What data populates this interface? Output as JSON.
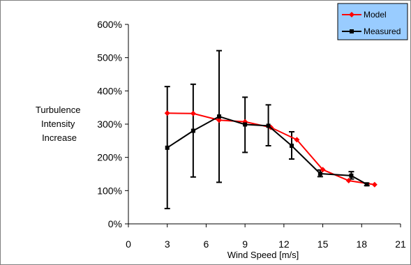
{
  "chart_data": {
    "type": "line",
    "xlabel": "Wind Speed [m/s]",
    "ylabel_lines": [
      "Turbulence",
      "Intensity",
      "Increase"
    ],
    "xlim": [
      0,
      21
    ],
    "ylim": [
      0,
      600
    ],
    "x_ticks": [
      0,
      3,
      6,
      9,
      12,
      15,
      18,
      21
    ],
    "y_ticks": [
      0,
      100,
      200,
      300,
      400,
      500,
      600
    ],
    "x_tick_labels": [
      "0",
      "3",
      "6",
      "9",
      "12",
      "15",
      "18",
      "21"
    ],
    "y_tick_labels": [
      "0%",
      "100%",
      "200%",
      "300%",
      "400%",
      "500%",
      "600%"
    ],
    "grid": false,
    "legend_position": "top-right",
    "legend_background": "#99ccff",
    "series": [
      {
        "name": "Model",
        "color": "#ff0000",
        "marker": "diamond",
        "x": [
          3,
          5,
          7,
          9,
          11,
          13,
          15,
          17,
          19
        ],
        "y": [
          333,
          332,
          312,
          307,
          290,
          253,
          163,
          130,
          118
        ]
      },
      {
        "name": "Measured",
        "color": "#000000",
        "marker": "square",
        "x": [
          3,
          5,
          7,
          9,
          10.8,
          12.6,
          14.8,
          17.2,
          18.4
        ],
        "y": [
          229,
          280,
          323,
          299,
          295,
          235,
          151,
          145,
          119
        ],
        "error_low": [
          46,
          141,
          125,
          215,
          235,
          195,
          142,
          135,
          115
        ],
        "error_high": [
          413,
          420,
          521,
          381,
          358,
          277,
          162,
          157,
          122
        ]
      }
    ]
  }
}
